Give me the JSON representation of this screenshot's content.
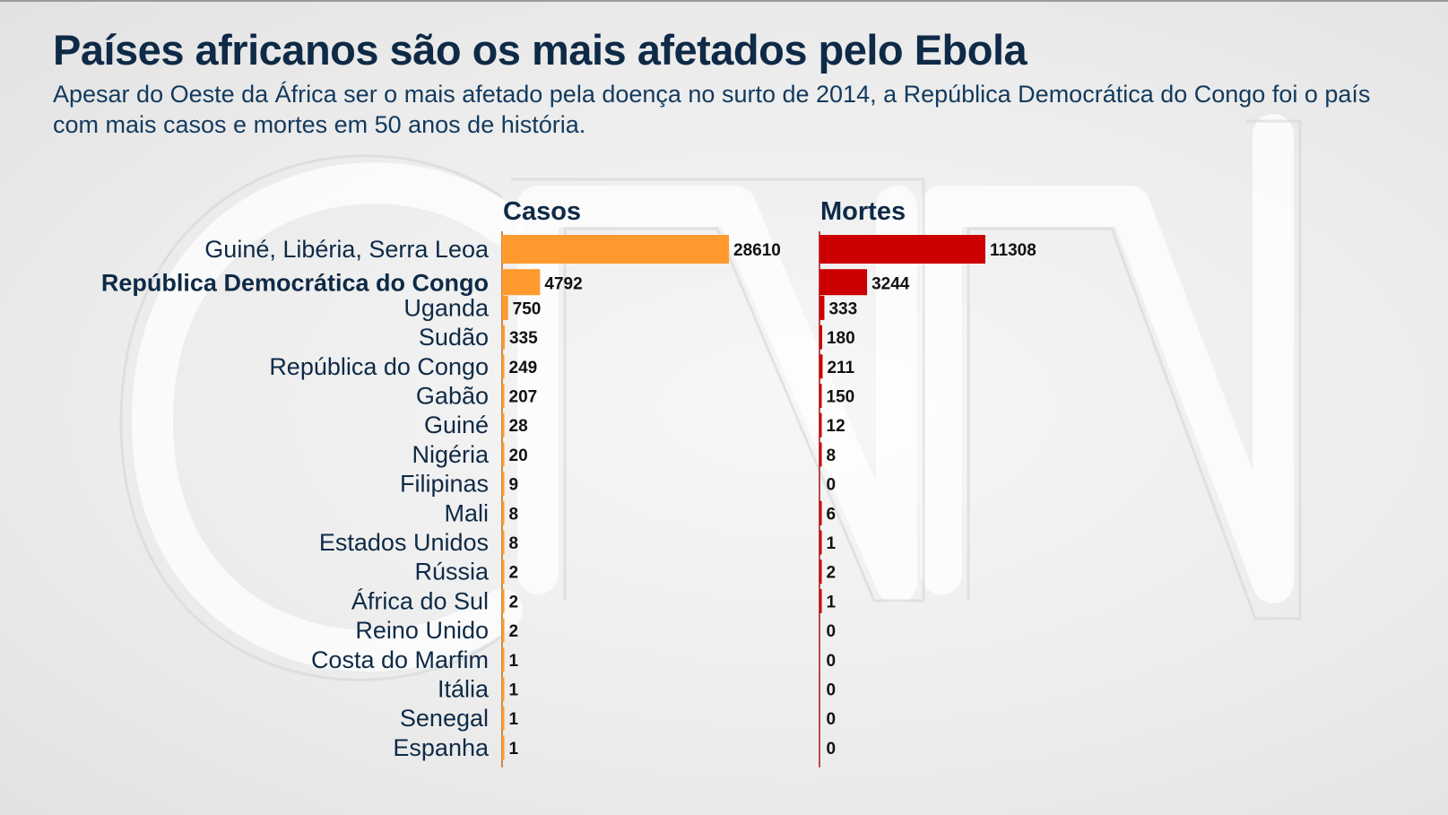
{
  "title": "Países africanos são os mais afetados pelo Ebola",
  "subtitle": "Apesar do Oeste da África ser o mais afetado pela doença no surto de 2014, a República Democrática do Congo foi o país com mais casos e mortes em 50 anos de história.",
  "watermark": "CNN",
  "colors": {
    "cases": "#ff9a2e",
    "deaths": "#cc0000",
    "text": "#0e2a47"
  },
  "chart_data": {
    "type": "bar",
    "orientation": "horizontal",
    "categories": [
      "Guiné, Libéria, Serra Leoa",
      "República Democrática do Congo",
      "Uganda",
      "Sudão",
      "República do Congo",
      "Gabão",
      "Guiné",
      "Nigéria",
      "Filipinas",
      "Mali",
      "Estados Unidos",
      "Rússia",
      "África do Sul",
      "Reino Unido",
      "Costa do Marfim",
      "Itália",
      "Senegal",
      "Espanha"
    ],
    "highlighted_category": "República Democrática do Congo",
    "series": [
      {
        "name": "Casos",
        "values": [
          28610,
          4792,
          750,
          335,
          249,
          207,
          28,
          20,
          9,
          8,
          8,
          2,
          2,
          2,
          1,
          1,
          1,
          1
        ]
      },
      {
        "name": "Mortes",
        "values": [
          11308,
          3244,
          333,
          180,
          211,
          150,
          12,
          8,
          0,
          6,
          1,
          2,
          1,
          0,
          0,
          0,
          0,
          0
        ]
      }
    ],
    "grid": false,
    "legend": "none"
  }
}
